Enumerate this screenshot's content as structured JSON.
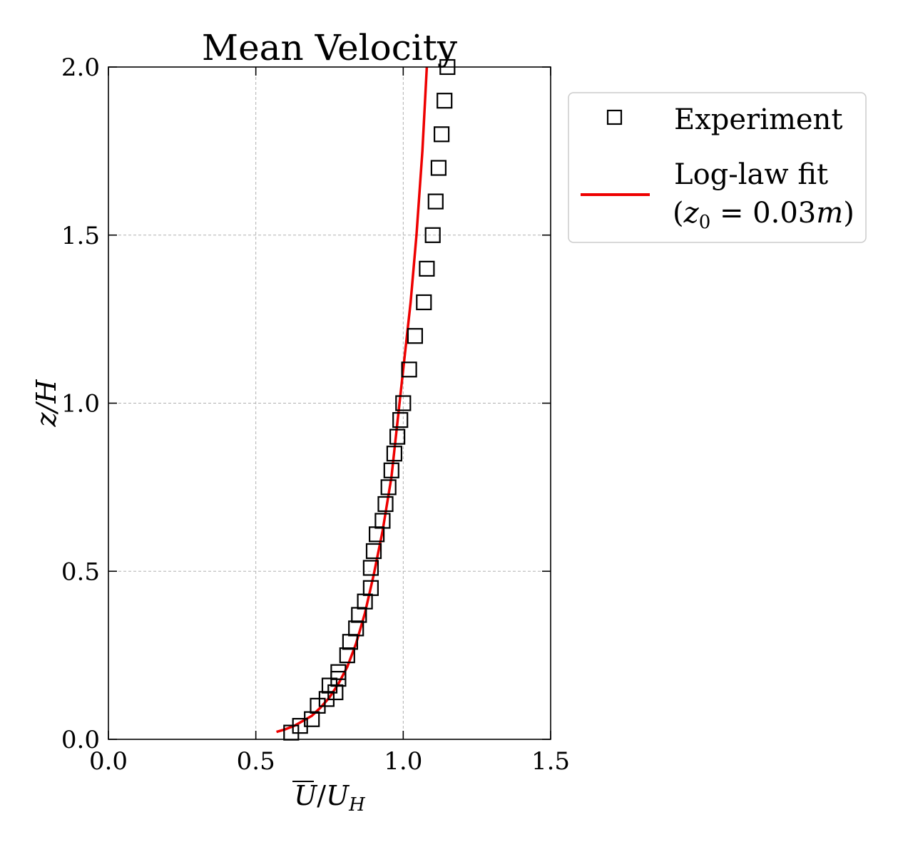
{
  "chart_data": {
    "type": "scatter",
    "title": "Mean Velocity",
    "xlabel": "U̅/U_H",
    "xlabel_parts": {
      "main": "U",
      "slash": "/",
      "base": "U",
      "sub": "H"
    },
    "ylabel": "z/H",
    "xlim": [
      0.0,
      1.5
    ],
    "ylim": [
      0.0,
      2.0
    ],
    "xticks": [
      0.0,
      0.5,
      1.0,
      1.5
    ],
    "xtick_labels": [
      "0.0",
      "0.5",
      "1.0",
      "1.5"
    ],
    "yticks": [
      0.0,
      0.5,
      1.0,
      1.5,
      2.0
    ],
    "ytick_labels": [
      "0.0",
      "0.5",
      "1.0",
      "1.5",
      "2.0"
    ],
    "grid": true,
    "legend_position": "outside-right-top",
    "series": [
      {
        "name": "Experiment",
        "kind": "scatter",
        "marker": "square-open",
        "color": "#000000",
        "x": [
          0.62,
          0.65,
          0.69,
          0.71,
          0.74,
          0.75,
          0.77,
          0.78,
          0.78,
          0.81,
          0.82,
          0.84,
          0.85,
          0.87,
          0.89,
          0.89,
          0.9,
          0.91,
          0.93,
          0.94,
          0.95,
          0.96,
          0.97,
          0.98,
          0.99,
          1.0,
          1.02,
          1.04,
          1.07,
          1.08,
          1.1,
          1.11,
          1.12,
          1.13,
          1.14,
          1.15
        ],
        "y": [
          0.02,
          0.04,
          0.06,
          0.1,
          0.12,
          0.16,
          0.14,
          0.18,
          0.2,
          0.25,
          0.29,
          0.33,
          0.37,
          0.41,
          0.45,
          0.51,
          0.56,
          0.61,
          0.65,
          0.7,
          0.75,
          0.8,
          0.85,
          0.9,
          0.95,
          1.0,
          1.1,
          1.2,
          1.3,
          1.4,
          1.5,
          1.6,
          1.7,
          1.8,
          1.9,
          2.0
        ]
      },
      {
        "name": "Log-law fit",
        "name_line2": "(z₀ = 0.03m)",
        "name_line2_parts": {
          "open": "(",
          "var": "z",
          "sub": "0",
          "eq": " = 0.03",
          "unit": "m",
          "close": ")"
        },
        "kind": "line",
        "color": "#ee0000",
        "x": [
          0.57,
          0.6,
          0.63,
          0.66,
          0.69,
          0.72,
          0.75,
          0.78,
          0.81,
          0.84,
          0.87,
          0.9,
          0.93,
          0.96,
          0.985,
          1.0,
          1.025,
          1.045,
          1.065,
          1.08
        ],
        "y": [
          0.022,
          0.03,
          0.04,
          0.055,
          0.07,
          0.095,
          0.125,
          0.165,
          0.215,
          0.285,
          0.375,
          0.49,
          0.62,
          0.78,
          0.98,
          1.1,
          1.3,
          1.5,
          1.75,
          2.0
        ]
      }
    ]
  }
}
